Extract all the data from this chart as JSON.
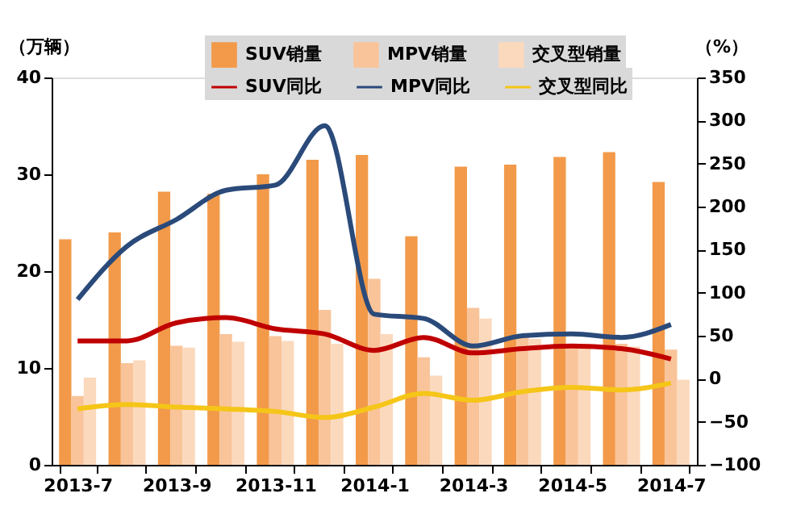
{
  "chart_data": {
    "type": "bar",
    "ylabel": "（万辆）",
    "y2label": "（%）",
    "categories": [
      "2013-7",
      null,
      "2013-9",
      null,
      "2013-11",
      null,
      "2014-1",
      null,
      "2014-3",
      null,
      "2014-5",
      null,
      "2014-7"
    ],
    "ylim": [
      0,
      40
    ],
    "yticks": [
      0,
      10,
      20,
      30,
      40
    ],
    "y2lim": [
      -100,
      350
    ],
    "y2ticks": [
      -100,
      -50,
      0,
      50,
      100,
      150,
      200,
      250,
      300,
      350
    ],
    "grid": false,
    "legend": "top",
    "line_style": "solid",
    "marker": "none",
    "series": [
      {
        "name": "SUV销量",
        "color": "#f29a4a",
        "values": [
          23.3,
          24,
          28.2,
          28,
          30,
          31.5,
          32,
          23.6,
          30.8,
          31,
          31.8,
          32.3,
          29.2
        ]
      },
      {
        "name": "MPV销量",
        "color": "#f9c49a",
        "values": [
          7.1,
          10.5,
          12.3,
          13.5,
          13.3,
          16,
          19.2,
          11.1,
          16.2,
          13.5,
          12.5,
          12.5,
          11.9
        ]
      },
      {
        "name": "交叉型销量",
        "color": "#fbd9bd",
        "values": [
          9,
          10.8,
          12.1,
          12.7,
          12.8,
          12.5,
          13.5,
          9.2,
          15.1,
          13,
          12.5,
          12.2,
          8.8
        ]
      },
      {
        "name": "SUV同比",
        "type": "line",
        "axis": "y2",
        "color": "#c00000",
        "values": [
          44,
          44,
          65,
          71,
          58,
          52,
          33,
          48,
          30,
          35,
          38,
          35,
          23
        ]
      },
      {
        "name": "MPV同比",
        "type": "line",
        "axis": "y2",
        "color": "#2a4a7a",
        "values": [
          92,
          154,
          185,
          219,
          225,
          294,
          75,
          70,
          38,
          50,
          52,
          48,
          63
        ]
      },
      {
        "name": "交叉型同比",
        "type": "line",
        "axis": "y2",
        "color": "#f5c518",
        "values": [
          -35,
          -30,
          -33,
          -35,
          -38,
          -45,
          -33,
          -17,
          -25,
          -15,
          -10,
          -13,
          -5
        ]
      }
    ]
  }
}
